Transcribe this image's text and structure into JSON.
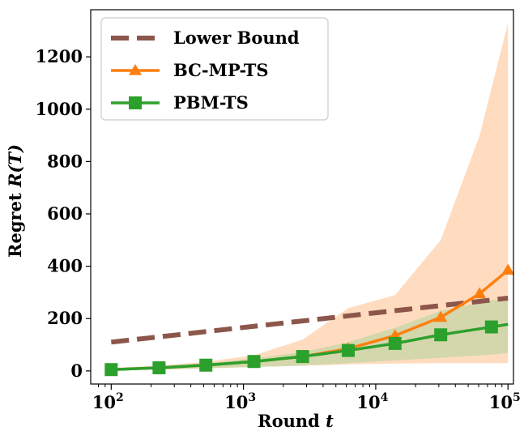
{
  "chart_data": {
    "type": "line",
    "xlabel": "Round",
    "xlabel_var": "t",
    "ylabel": "Regret",
    "ylabel_var": "R(T)",
    "x_scale": "log",
    "xlim": [
      70,
      110000
    ],
    "ylim": [
      -50,
      1380
    ],
    "x_ticks": [
      {
        "value": 100,
        "base": "10",
        "exp": "2"
      },
      {
        "value": 1000,
        "base": "10",
        "exp": "3"
      },
      {
        "value": 10000,
        "base": "10",
        "exp": "4"
      },
      {
        "value": 100000,
        "base": "10",
        "exp": "5"
      }
    ],
    "y_ticks": [
      {
        "value": 0,
        "label": "0"
      },
      {
        "value": 200,
        "label": "200"
      },
      {
        "value": 400,
        "label": "400"
      },
      {
        "value": 600,
        "label": "600"
      },
      {
        "value": 800,
        "label": "800"
      },
      {
        "value": 1000,
        "label": "1000"
      },
      {
        "value": 1200,
        "label": "1200"
      }
    ],
    "grid": false,
    "legend_position": "top-left",
    "series": [
      {
        "name": "Lower Bound",
        "color": "#8c564b",
        "style": "dashed",
        "marker": "none",
        "x": [
          100,
          100000
        ],
        "y": [
          110,
          278
        ]
      },
      {
        "name": "BC-MP-TS",
        "color": "#ff7f0e",
        "style": "solid",
        "marker": "triangle",
        "x": [
          100,
          230,
          520,
          1200,
          2800,
          6200,
          14000,
          31000,
          61000,
          100000
        ],
        "y": [
          5,
          12,
          22,
          36,
          55,
          85,
          135,
          205,
          295,
          385
        ],
        "band_upper": [
          12,
          20,
          35,
          60,
          120,
          240,
          290,
          500,
          900,
          1330
        ],
        "band_lower": [
          2,
          5,
          10,
          15,
          20,
          25,
          28,
          30,
          30,
          30
        ],
        "band_color": "#ffdcc0"
      },
      {
        "name": "PBM-TS",
        "color": "#2ca02c",
        "style": "solid",
        "marker": "square",
        "x": [
          100,
          230,
          520,
          1200,
          2800,
          6200,
          14000,
          31000,
          75000,
          100000
        ],
        "y": [
          5,
          12,
          22,
          36,
          55,
          78,
          105,
          138,
          168,
          178
        ],
        "band_upper": [
          10,
          18,
          30,
          48,
          72,
          110,
          165,
          230,
          270,
          275
        ],
        "band_lower": [
          2,
          5,
          10,
          15,
          20,
          30,
          40,
          50,
          62,
          68
        ],
        "band_color": "#c5d6a6"
      }
    ]
  }
}
